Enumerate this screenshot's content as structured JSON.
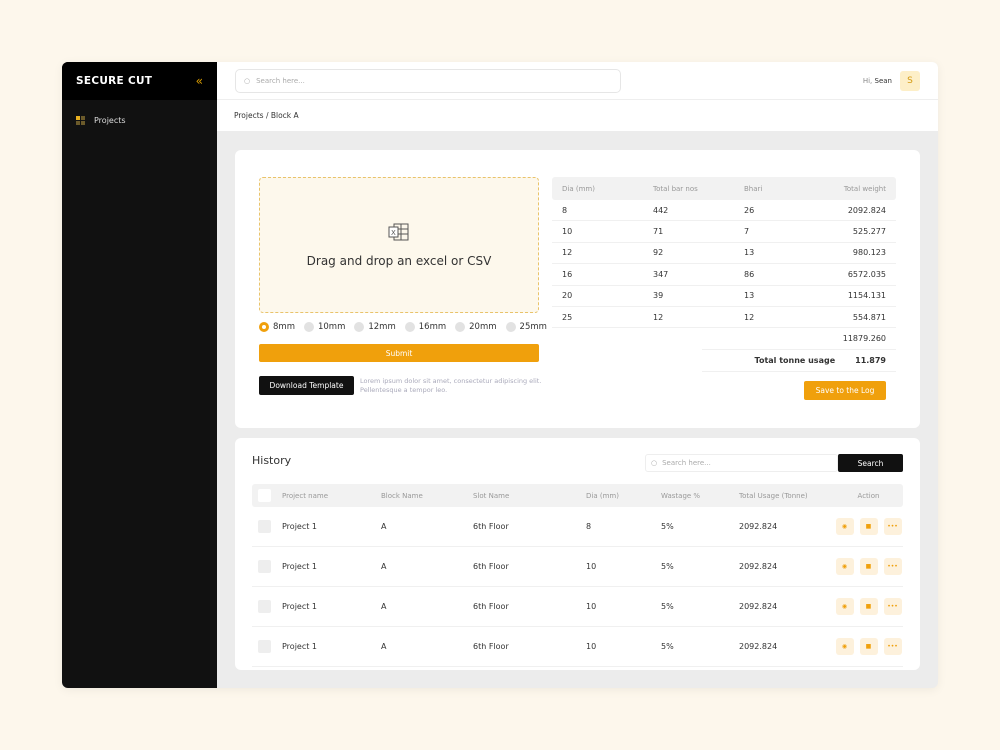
{
  "app": {
    "logo": "SECURE CUT",
    "collapse_icon": "double-chevron-left-icon"
  },
  "sidebar": {
    "items": [
      {
        "label": "Projects",
        "icon": "grid-icon"
      }
    ]
  },
  "header": {
    "search_placeholder": "Search here...",
    "greeting": "Hi,",
    "user": "Sean",
    "avatar": "S"
  },
  "breadcrumb": "Projects / Block A",
  "upload": {
    "drop_text": "Drag and drop an excel or CSV",
    "sizes": [
      "8mm",
      "10mm",
      "12mm",
      "16mm",
      "20mm",
      "25mm"
    ],
    "selected": "8mm",
    "submit": "Submit",
    "download": "Download Template",
    "note": "Lorem ipsum dolor sit amet, consectetur adipiscing elit. Pellentesque a tempor leo."
  },
  "summary": {
    "columns": [
      "Dia (mm)",
      "Total bar nos",
      "Bhari",
      "Total weight"
    ],
    "rows": [
      [
        "8",
        "442",
        "26",
        "2092.824"
      ],
      [
        "10",
        "71",
        "7",
        "525.277"
      ],
      [
        "12",
        "92",
        "13",
        "980.123"
      ],
      [
        "16",
        "347",
        "86",
        "6572.035"
      ],
      [
        "20",
        "39",
        "13",
        "1154.131"
      ],
      [
        "25",
        "12",
        "12",
        "554.871"
      ]
    ],
    "total": "11879.260",
    "tonne_label": "Total tonne usage",
    "tonne_value": "11.879",
    "save": "Save to the Log"
  },
  "history": {
    "title": "History",
    "search_placeholder": "Search here...",
    "search_button": "Search",
    "columns": [
      "Project name",
      "Block Name",
      "Slot Name",
      "Dia (mm)",
      "Wastage %",
      "Total Usage (Tonne)",
      "Action"
    ],
    "rows": [
      [
        "Project 1",
        "A",
        "6th Floor",
        "8",
        "5%",
        "2092.824"
      ],
      [
        "Project 1",
        "A",
        "6th Floor",
        "10",
        "5%",
        "2092.824"
      ],
      [
        "Project 1",
        "A",
        "6th Floor",
        "10",
        "5%",
        "2092.824"
      ],
      [
        "Project 1",
        "A",
        "6th Floor",
        "10",
        "5%",
        "2092.824"
      ]
    ]
  },
  "colors": {
    "accent": "#f0a00c",
    "sidebar": "#111111",
    "background": "#fdf7ec"
  }
}
